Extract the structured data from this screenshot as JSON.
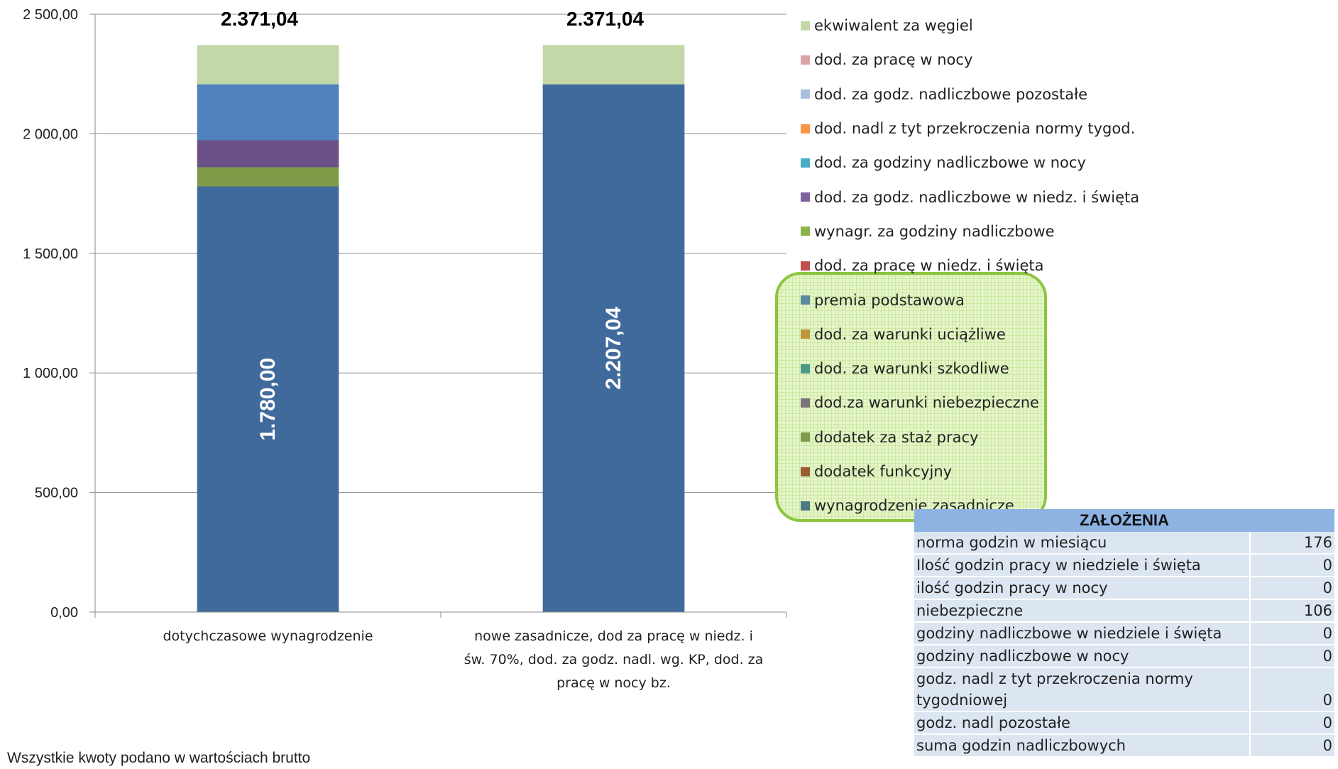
{
  "chart_data": {
    "type": "stacked-bar",
    "ylim": [
      0,
      2500
    ],
    "yticks": [
      "0,00",
      "500,00",
      "1 000,00",
      "1 500,00",
      "2 000,00",
      "2 500,00"
    ],
    "categories": [
      "dotychczasowe wynagrodzenie",
      "nowe zasadnicze, dod za pracę w niedz. i św. 70%, dod. za godz. nadl. wg. KP, dod. za pracę w nocy bz."
    ],
    "category_lines": [
      [
        "dotychczasowe wynagrodzenie"
      ],
      [
        "nowe zasadnicze, dod za pracę w niedz. i",
        "św. 70%, dod. za godz. nadl. wg. KP, dod. za",
        "pracę w nocy bz."
      ]
    ],
    "totals": [
      "2.371,04",
      "2.371,04"
    ],
    "inner_labels": [
      "1.780,00",
      "2.207,04"
    ],
    "series": [
      {
        "name": "wynagrodzenie zasadnicze",
        "values": [
          1780,
          2207.04
        ],
        "color": "#416a9c"
      },
      {
        "name": "dodatek za staż pracy",
        "values": [
          80,
          0
        ],
        "color": "#7f9b48"
      },
      {
        "name": "dod. za godz. nadliczbowe w niedz. i święta",
        "values": [
          113,
          0
        ],
        "color": "#6b5187"
      },
      {
        "name": "dod. za godz. nadliczbowe pozostałe",
        "values": [
          234.04,
          0
        ],
        "color": "#4f82bd"
      },
      {
        "name": "ekwiwalent za węgiel",
        "values": [
          164,
          164
        ],
        "color": "#c4d7a6"
      }
    ],
    "legend": [
      {
        "label": "ekwiwalent za węgiel",
        "color": "#c4d7a6"
      },
      {
        "label": "dod. za pracę w nocy",
        "color": "#d8a4a6"
      },
      {
        "label": "dod. za godz. nadliczbowe pozostałe",
        "color": "#a9bedf"
      },
      {
        "label": "dod. nadl z tyt przekroczenia normy tygod.",
        "color": "#f79646"
      },
      {
        "label": "dod. za godziny nadliczbowe w nocy",
        "color": "#4bacc6"
      },
      {
        "label": "dod. za godz. nadliczbowe w niedz. i święta",
        "color": "#7f62a0"
      },
      {
        "label": "wynagr. za godziny nadliczbowe",
        "color": "#8cb347"
      },
      {
        "label": "dod. za pracę w niedz. i święta",
        "color": "#c0504d"
      },
      {
        "label": "premia podstawowa",
        "color": "#5a8a9e"
      },
      {
        "label": "dod. za warunki uciążliwe",
        "color": "#c0963c"
      },
      {
        "label": "dod. za warunki szkodliwe",
        "color": "#4a9a86"
      },
      {
        "label": "dod.za warunki niebezpieczne",
        "color": "#7a7478"
      },
      {
        "label": "dodatek za staż pracy",
        "color": "#7f9b48"
      },
      {
        "label": "dodatek funkcyjny",
        "color": "#9c5b35"
      },
      {
        "label": "wynagrodzenie zasadnicze",
        "color": "#4c7a82"
      }
    ]
  },
  "assumptions": {
    "title": "ZAŁOŻENIA",
    "rows": [
      {
        "label": "norma godzin w miesiącu",
        "value": "176"
      },
      {
        "label": "Ilość godzin pracy w niedziele i święta",
        "value": "0"
      },
      {
        "label": "ilość godzin pracy w nocy",
        "value": "0"
      },
      {
        "label": "niebezpieczne",
        "value": "106"
      },
      {
        "label": "godziny nadliczbowe w niedziele i święta",
        "value": "0"
      },
      {
        "label": "godziny nadliczbowe w nocy",
        "value": "0"
      },
      {
        "label": "godz. nadl z tyt przekroczenia normy tygodniowej",
        "value": "0"
      },
      {
        "label": "godz. nadl pozostałe",
        "value": "0"
      },
      {
        "label": "suma godzin nadliczbowych",
        "value": "0"
      }
    ]
  },
  "footnote": "Wszystkie kwoty podano w wartościach brutto"
}
